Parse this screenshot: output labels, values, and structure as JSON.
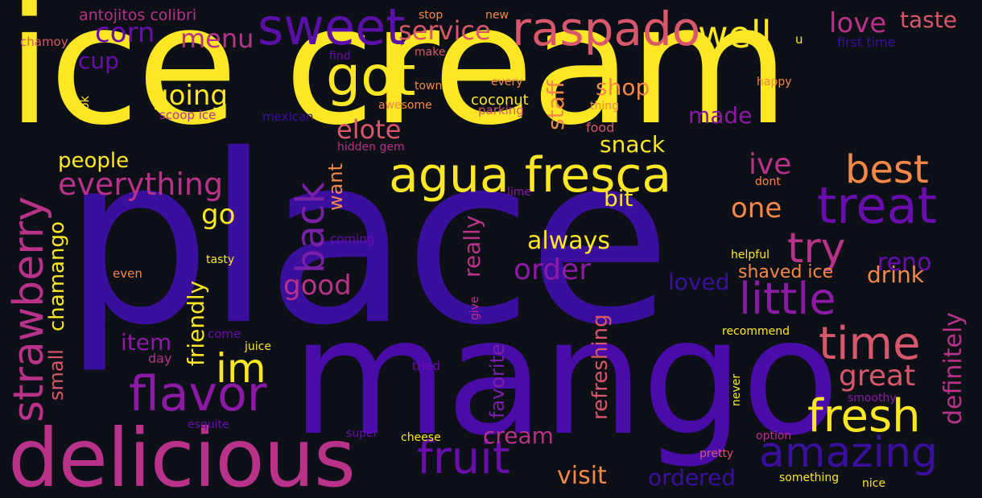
{
  "background": "#0d1117",
  "palette": {
    "yellow": "#fde725",
    "indigo": "#3b0f9e",
    "purple": "#6a0dad",
    "magenta": "#b83289",
    "pink": "#d8576b",
    "orange": "#f48849"
  },
  "words": {
    "ice_cream": "ice cream",
    "place": "place",
    "mango": "mango",
    "delicious": "delicious",
    "agua_fresca": "agua fresca",
    "sweet": "sweet",
    "raspado": "raspado",
    "got": "got",
    "well": "well",
    "strawberry": "strawberry",
    "fruit": "fruit",
    "flavor": "flavor",
    "fresh": "fresh",
    "amazing": "amazing",
    "treat": "treat",
    "little": "little",
    "time": "time",
    "try": "try",
    "best": "best",
    "back": "back",
    "im": "im",
    "everything": "everything",
    "great": "great",
    "definitely": "definitely",
    "corn": "corn",
    "menu": "menu",
    "service": "service",
    "love": "love",
    "taste": "taste",
    "going": "going",
    "elote": "elote",
    "order": "order",
    "always": "always",
    "good": "good",
    "chamango": "chamango",
    "friendly": "friendly",
    "shop": "shop",
    "staff": "staff",
    "snack": "snack",
    "made": "made",
    "ive": "ive",
    "one": "one",
    "reno": "reno",
    "drink": "drink",
    "people": "people",
    "go": "go",
    "really": "really",
    "refreshing": "refreshing",
    "favorite": "favorite",
    "cream": "cream",
    "visit": "visit",
    "ordered": "ordered",
    "item": "item",
    "small": "small",
    "loved": "loved",
    "shaved_ice": "shaved ice",
    "antojitos_colibri": "antojitos colibri",
    "cup": "cup",
    "want": "want",
    "bit": "bit",
    "stop": "stop",
    "new": "new",
    "chamoy": "chamoy",
    "first_time": "first time",
    "u": "u",
    "find": "find",
    "make": "make",
    "look": "look",
    "town": "town",
    "every": "every",
    "happy": "happy",
    "awesome": "awesome",
    "coconut": "coconut",
    "scoop_ice": "scoop ice",
    "mexican": "mexican",
    "parking": "parking",
    "thing": "thing",
    "food": "food",
    "hidden_gem": "hidden gem",
    "dont": "dont",
    "lime": "lime",
    "coming": "coming",
    "tasty": "tasty",
    "even": "even",
    "helpful": "helpful",
    "give": "give",
    "recommend": "recommend",
    "come": "come",
    "juice": "juice",
    "day": "day",
    "tried": "tried",
    "never": "never",
    "smoothy": "smoothy",
    "esquite": "esquite",
    "super": "super",
    "cheese": "cheese",
    "option": "option",
    "pretty": "pretty",
    "something": "something",
    "nice": "nice"
  }
}
